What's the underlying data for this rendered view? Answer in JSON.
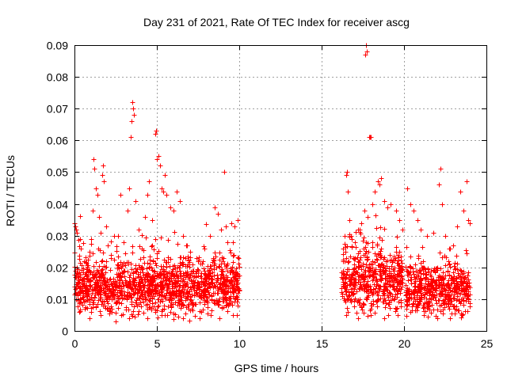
{
  "chart_data": {
    "type": "scatter",
    "title": "Day 231 of 2021, Rate Of TEC Index for receiver ascg",
    "xlabel": "GPS time / hours",
    "ylabel": "ROTI / TECUs",
    "xlim": [
      0,
      25
    ],
    "ylim": [
      0,
      0.09
    ],
    "xticks": [
      0,
      5,
      10,
      15,
      20,
      25
    ],
    "xtick_labels": [
      "0",
      "5",
      "10",
      "15",
      "20",
      "25"
    ],
    "yticks": [
      0,
      0.01,
      0.02,
      0.03,
      0.04,
      0.05,
      0.06,
      0.07,
      0.08,
      0.09
    ],
    "ytick_labels": [
      "0",
      "0.01",
      "0.02",
      "0.03",
      "0.04",
      "0.05",
      "0.06",
      "0.07",
      "0.08",
      "0.09"
    ],
    "grid": true,
    "marker": "+",
    "color": "#ff0000",
    "series": [
      {
        "name": "ROTI",
        "points": [
          [
            0.0,
            0.034
          ],
          [
            0.05,
            0.033
          ],
          [
            0.1,
            0.032
          ],
          [
            0.15,
            0.031
          ],
          [
            0.2,
            0.018
          ],
          [
            0.3,
            0.012
          ],
          [
            0.4,
            0.009
          ],
          [
            0.5,
            0.015
          ],
          [
            0.6,
            0.022
          ],
          [
            0.7,
            0.011
          ],
          [
            0.8,
            0.019
          ],
          [
            0.9,
            0.025
          ],
          [
            1.0,
            0.029
          ],
          [
            1.1,
            0.038
          ],
          [
            1.15,
            0.054
          ],
          [
            1.2,
            0.051
          ],
          [
            1.3,
            0.045
          ],
          [
            1.4,
            0.043
          ],
          [
            1.5,
            0.036
          ],
          [
            1.6,
            0.031
          ],
          [
            1.7,
            0.049
          ],
          [
            1.75,
            0.052
          ],
          [
            1.8,
            0.047
          ],
          [
            1.9,
            0.033
          ],
          [
            2.0,
            0.027
          ],
          [
            2.2,
            0.024
          ],
          [
            2.4,
            0.03
          ],
          [
            2.6,
            0.021
          ],
          [
            2.8,
            0.043
          ],
          [
            3.0,
            0.028
          ],
          [
            3.2,
            0.038
          ],
          [
            3.3,
            0.045
          ],
          [
            3.4,
            0.061
          ],
          [
            3.45,
            0.066
          ],
          [
            3.5,
            0.072
          ],
          [
            3.55,
            0.07
          ],
          [
            3.6,
            0.068
          ],
          [
            3.7,
            0.041
          ],
          [
            3.9,
            0.032
          ],
          [
            4.1,
            0.026
          ],
          [
            4.3,
            0.036
          ],
          [
            4.4,
            0.043
          ],
          [
            4.5,
            0.047
          ],
          [
            4.7,
            0.035
          ],
          [
            4.9,
            0.062
          ],
          [
            4.95,
            0.063
          ],
          [
            5.0,
            0.054
          ],
          [
            5.1,
            0.055
          ],
          [
            5.2,
            0.052
          ],
          [
            5.3,
            0.045
          ],
          [
            5.4,
            0.044
          ],
          [
            5.5,
            0.049
          ],
          [
            5.6,
            0.043
          ],
          [
            5.8,
            0.039
          ],
          [
            6.0,
            0.038
          ],
          [
            6.2,
            0.044
          ],
          [
            6.4,
            0.041
          ],
          [
            6.6,
            0.03
          ],
          [
            6.8,
            0.027
          ],
          [
            7.0,
            0.025
          ],
          [
            7.4,
            0.023
          ],
          [
            7.8,
            0.022
          ],
          [
            8.2,
            0.03
          ],
          [
            8.5,
            0.039
          ],
          [
            8.7,
            0.037
          ],
          [
            8.9,
            0.032
          ],
          [
            9.1,
            0.05
          ],
          [
            9.3,
            0.028
          ],
          [
            9.5,
            0.034
          ],
          [
            9.7,
            0.033
          ],
          [
            9.9,
            0.035
          ],
          [
            0.3,
            0.006
          ],
          [
            0.9,
            0.004
          ],
          [
            1.6,
            0.005
          ],
          [
            2.5,
            0.003
          ],
          [
            3.3,
            0.004
          ],
          [
            4.4,
            0.004
          ],
          [
            5.5,
            0.005
          ],
          [
            6.6,
            0.004
          ],
          [
            7.7,
            0.006
          ],
          [
            8.8,
            0.004
          ],
          [
            9.6,
            0.005
          ],
          [
            16.3,
            0.026
          ],
          [
            16.4,
            0.03
          ],
          [
            16.5,
            0.049
          ],
          [
            16.55,
            0.05
          ],
          [
            16.6,
            0.044
          ],
          [
            16.7,
            0.035
          ],
          [
            16.8,
            0.03
          ],
          [
            17.0,
            0.028
          ],
          [
            17.2,
            0.032
          ],
          [
            17.4,
            0.034
          ],
          [
            17.6,
            0.038
          ],
          [
            17.65,
            0.087
          ],
          [
            17.7,
            0.09
          ],
          [
            17.75,
            0.088
          ],
          [
            17.8,
            0.036
          ],
          [
            17.9,
            0.061
          ],
          [
            17.95,
            0.061
          ],
          [
            18.0,
            0.061
          ],
          [
            18.1,
            0.04
          ],
          [
            18.2,
            0.044
          ],
          [
            18.4,
            0.047
          ],
          [
            18.5,
            0.046
          ],
          [
            18.6,
            0.048
          ],
          [
            18.8,
            0.041
          ],
          [
            19.0,
            0.039
          ],
          [
            19.2,
            0.04
          ],
          [
            19.5,
            0.038
          ],
          [
            19.7,
            0.035
          ],
          [
            19.9,
            0.032
          ],
          [
            20.2,
            0.045
          ],
          [
            20.4,
            0.04
          ],
          [
            20.6,
            0.038
          ],
          [
            20.8,
            0.035
          ],
          [
            21.0,
            0.032
          ],
          [
            21.4,
            0.03
          ],
          [
            21.8,
            0.031
          ],
          [
            22.1,
            0.046
          ],
          [
            22.2,
            0.051
          ],
          [
            22.3,
            0.04
          ],
          [
            22.5,
            0.03
          ],
          [
            22.8,
            0.026
          ],
          [
            23.0,
            0.027
          ],
          [
            23.2,
            0.033
          ],
          [
            23.4,
            0.044
          ],
          [
            23.6,
            0.038
          ],
          [
            23.8,
            0.047
          ],
          [
            23.9,
            0.035
          ],
          [
            24.0,
            0.034
          ],
          [
            16.5,
            0.005
          ],
          [
            17.2,
            0.004
          ],
          [
            18.0,
            0.005
          ],
          [
            18.8,
            0.004
          ],
          [
            19.6,
            0.005
          ],
          [
            20.4,
            0.006
          ],
          [
            21.2,
            0.005
          ],
          [
            22.0,
            0.004
          ],
          [
            22.8,
            0.004
          ],
          [
            23.5,
            0.005
          ]
        ],
        "dense_bands": [
          {
            "x_range": [
              0.0,
              10.0
            ],
            "y_center": 0.014,
            "y_spread": 0.012
          },
          {
            "x_range": [
              16.2,
              19.9
            ],
            "y_center": 0.016,
            "y_spread": 0.014
          },
          {
            "x_range": [
              20.1,
              24.0
            ],
            "y_center": 0.013,
            "y_spread": 0.011
          }
        ]
      }
    ]
  }
}
